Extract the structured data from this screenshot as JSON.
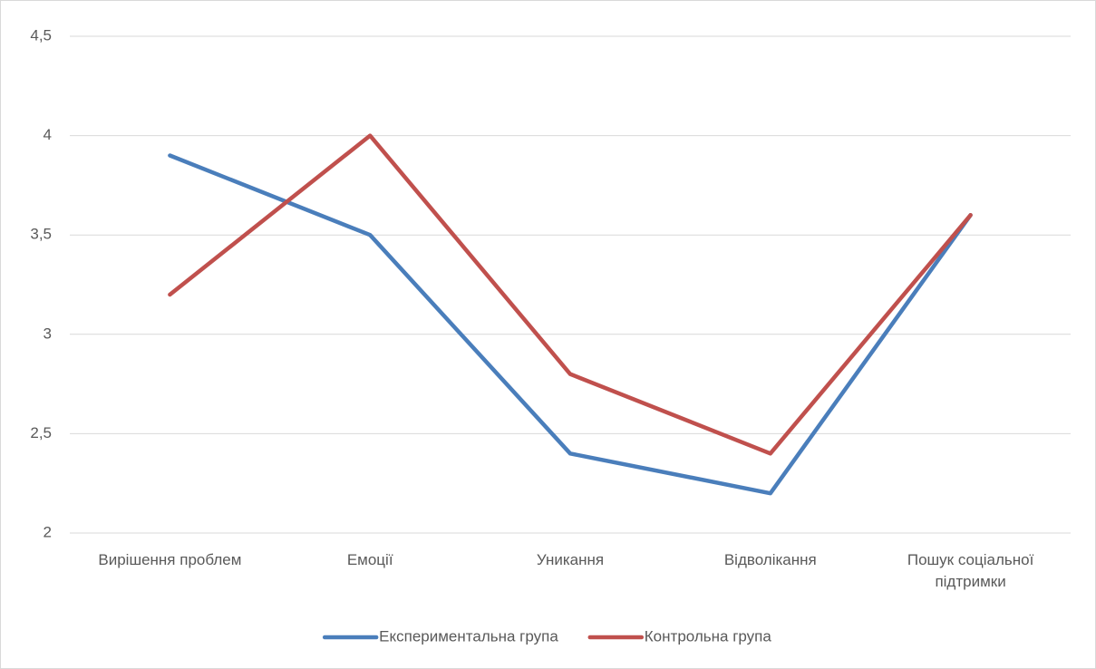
{
  "chart_data": {
    "type": "line",
    "categories": [
      "Вирішення проблем",
      "Емоції",
      "Уникання",
      "Відволікання",
      "Пошук соціальної підтримки"
    ],
    "series": [
      {
        "name": "Експериментальна група",
        "color": "#4a7ebb",
        "values": [
          3.9,
          3.5,
          2.4,
          2.2,
          3.6
        ]
      },
      {
        "name": "Контрольна група",
        "color": "#c0504d",
        "values": [
          3.2,
          4.0,
          2.8,
          2.4,
          3.6
        ]
      }
    ],
    "ylim": [
      2,
      4.5
    ],
    "yticks": [
      2,
      {
        "value": 2.5,
        "label": "2,5"
      },
      3,
      {
        "value": 3.5,
        "label": "3,5"
      },
      4,
      {
        "value": 4.5,
        "label": "4,5"
      }
    ],
    "grid": true,
    "legend": "bottom"
  }
}
